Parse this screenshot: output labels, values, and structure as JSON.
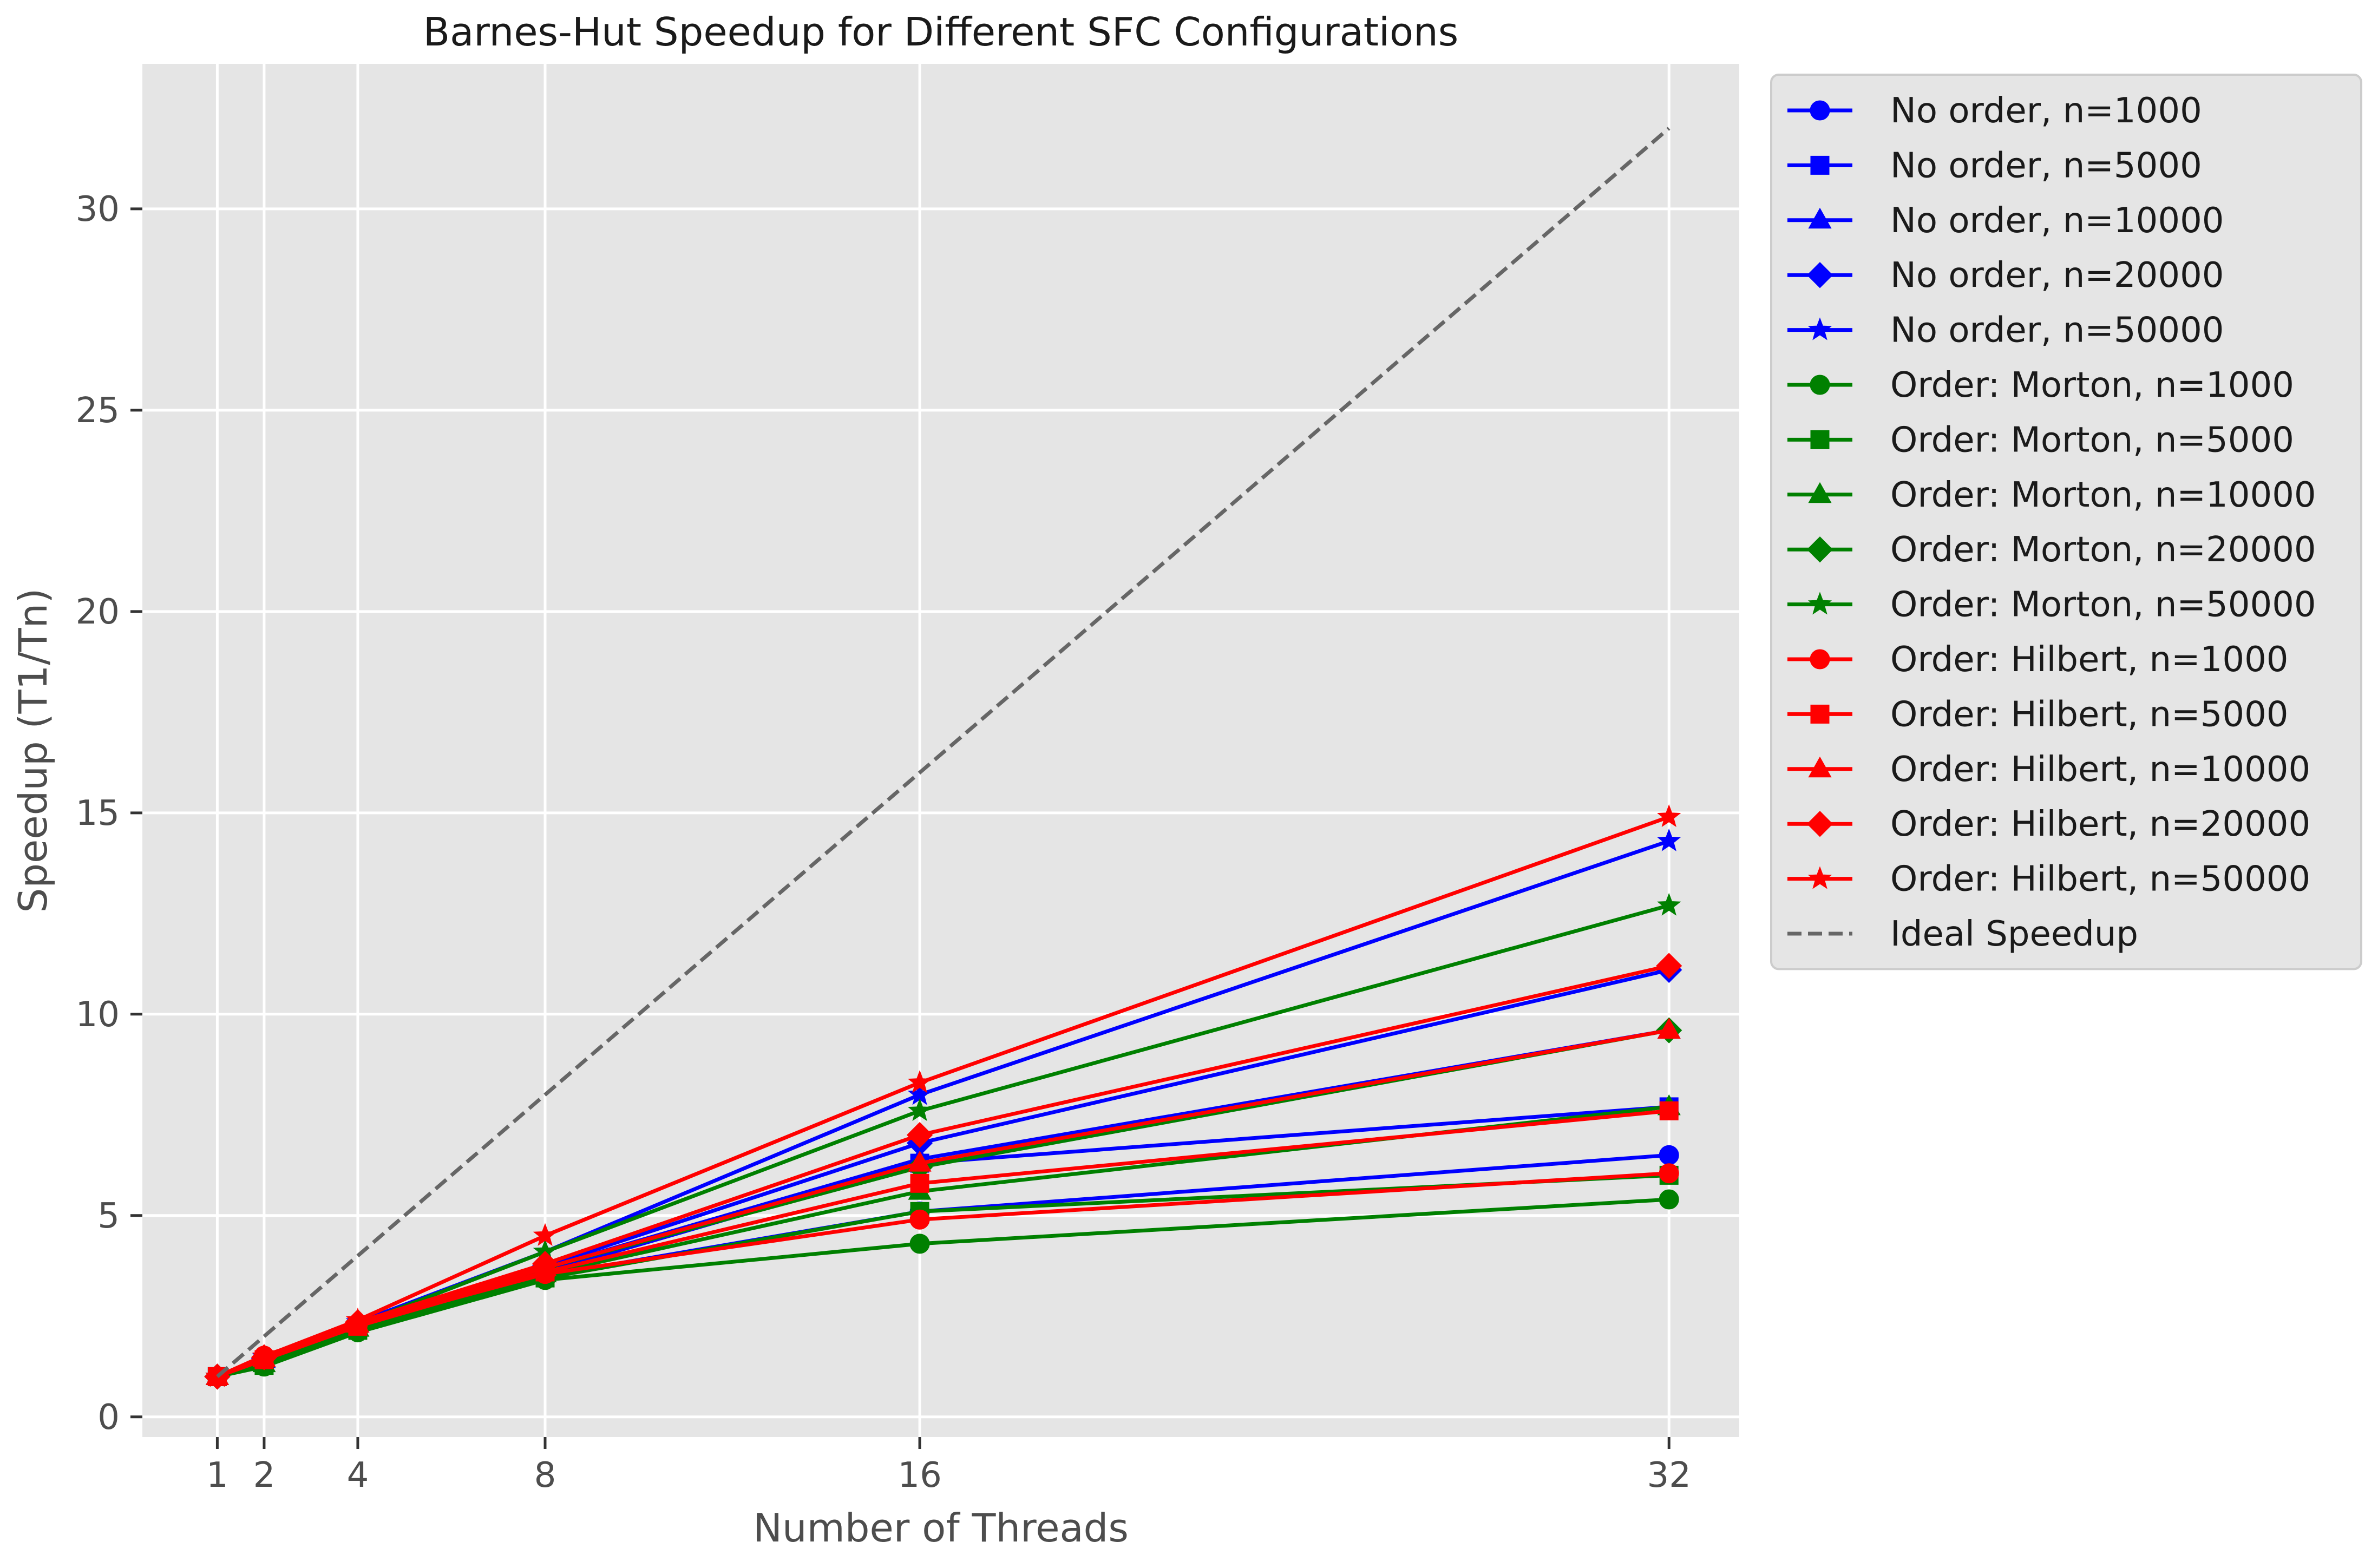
{
  "chart_data": {
    "type": "line",
    "title": "Barnes-Hut Speedup for Different SFC Configurations",
    "xlabel": "Number of Threads",
    "ylabel": "Speedup (T1/Tn)",
    "x": [
      1,
      2,
      4,
      8,
      16,
      32
    ],
    "xticks": [
      1,
      2,
      4,
      8,
      16,
      32
    ],
    "yticks": [
      0,
      5,
      10,
      15,
      20,
      25,
      30
    ],
    "xlim": [
      -0.6,
      33.5
    ],
    "ylim": [
      -0.5,
      33.6
    ],
    "grid": true,
    "legend_position": "outside-top-right",
    "colors": {
      "background": "#e5e5e5",
      "grid": "#ffffff",
      "no_order": "#0000ff",
      "morton": "#008000",
      "hilbert": "#ff0000",
      "ideal": "#666666"
    },
    "series": [
      {
        "name": "No order, n=1000",
        "color": "#0000ff",
        "marker": "circle",
        "values": [
          1.0,
          1.38,
          2.2,
          3.5,
          5.1,
          6.5
        ]
      },
      {
        "name": "No order, n=5000",
        "color": "#0000ff",
        "marker": "square",
        "values": [
          1.0,
          1.4,
          2.25,
          3.6,
          6.3,
          7.7
        ]
      },
      {
        "name": "No order, n=10000",
        "color": "#0000ff",
        "marker": "triangle",
        "values": [
          1.0,
          1.42,
          2.3,
          3.7,
          6.4,
          9.6
        ]
      },
      {
        "name": "No order, n=20000",
        "color": "#0000ff",
        "marker": "diamond",
        "values": [
          1.0,
          1.45,
          2.3,
          3.75,
          6.8,
          11.1
        ]
      },
      {
        "name": "No order, n=50000",
        "color": "#0000ff",
        "marker": "star",
        "values": [
          1.0,
          1.48,
          2.35,
          4.1,
          8.0,
          14.3
        ]
      },
      {
        "name": "Order: Morton, n=1000",
        "color": "#008000",
        "marker": "circle",
        "values": [
          1.0,
          1.25,
          2.1,
          3.4,
          4.3,
          5.4
        ]
      },
      {
        "name": "Order: Morton, n=5000",
        "color": "#008000",
        "marker": "square",
        "values": [
          1.0,
          1.28,
          2.15,
          3.45,
          5.1,
          6.0
        ]
      },
      {
        "name": "Order: Morton, n=10000",
        "color": "#008000",
        "marker": "triangle",
        "values": [
          1.0,
          1.32,
          2.2,
          3.55,
          5.6,
          7.7
        ]
      },
      {
        "name": "Order: Morton, n=20000",
        "color": "#008000",
        "marker": "diamond",
        "values": [
          1.0,
          1.36,
          2.25,
          3.7,
          6.2,
          9.6
        ]
      },
      {
        "name": "Order: Morton, n=50000",
        "color": "#008000",
        "marker": "star",
        "values": [
          1.0,
          1.4,
          2.3,
          4.1,
          7.6,
          12.7
        ]
      },
      {
        "name": "Order: Hilbert, n=1000",
        "color": "#ff0000",
        "marker": "circle",
        "values": [
          1.0,
          1.52,
          2.3,
          3.55,
          4.9,
          6.05
        ]
      },
      {
        "name": "Order: Hilbert, n=5000",
        "color": "#ff0000",
        "marker": "square",
        "values": [
          1.0,
          1.42,
          2.25,
          3.6,
          5.8,
          7.6
        ]
      },
      {
        "name": "Order: Hilbert, n=10000",
        "color": "#ff0000",
        "marker": "triangle",
        "values": [
          1.0,
          1.45,
          2.3,
          3.7,
          6.3,
          9.6
        ]
      },
      {
        "name": "Order: Hilbert, n=20000",
        "color": "#ff0000",
        "marker": "diamond",
        "values": [
          1.0,
          1.48,
          2.35,
          3.8,
          7.0,
          11.2
        ]
      },
      {
        "name": "Order: Hilbert, n=50000",
        "color": "#ff0000",
        "marker": "star",
        "values": [
          1.0,
          1.5,
          2.4,
          4.5,
          8.3,
          14.9
        ]
      },
      {
        "name": "Ideal Speedup",
        "color": "#666666",
        "marker": "none",
        "dashed": true,
        "values": [
          1,
          2,
          4,
          8,
          16,
          32
        ]
      }
    ]
  }
}
